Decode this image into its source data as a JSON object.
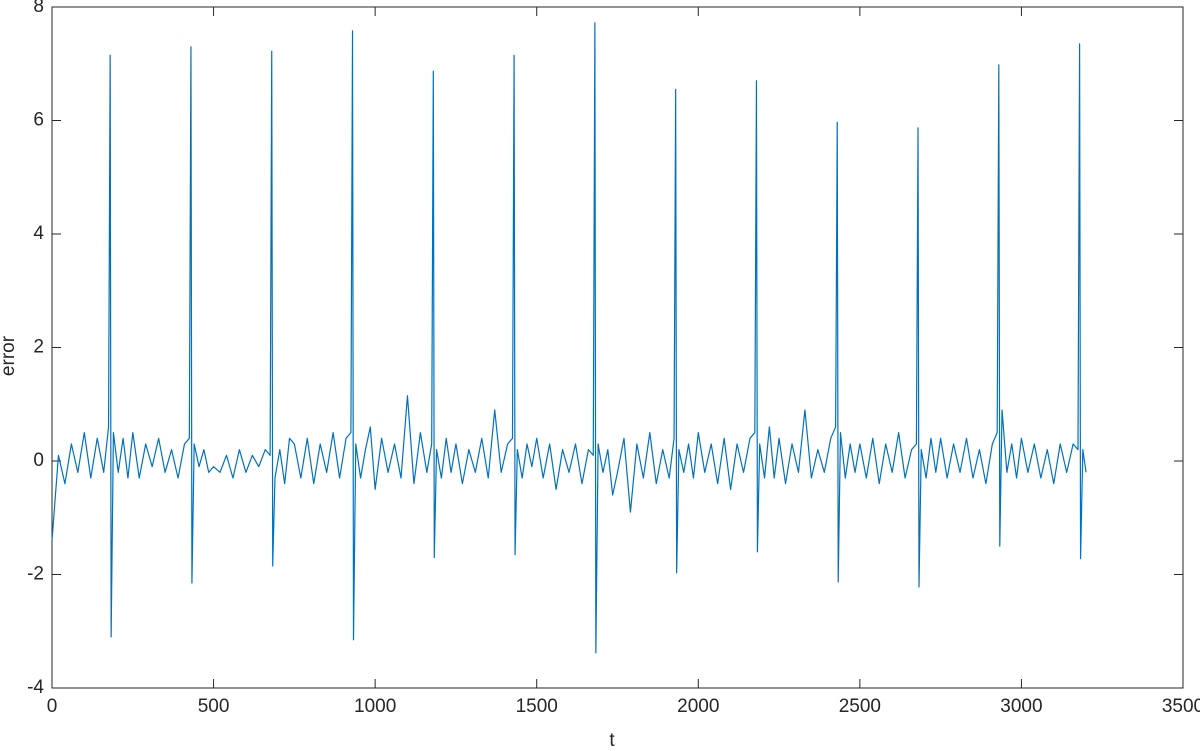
{
  "chart_data": {
    "type": "line",
    "xlabel": "t",
    "ylabel": "error",
    "xlim": [
      0,
      3500
    ],
    "xticks": [
      0,
      500,
      1000,
      1500,
      2000,
      2500,
      3000,
      3500
    ],
    "ylim": [
      -4,
      8
    ],
    "yticks": [
      -4,
      -2,
      0,
      2,
      4,
      6,
      8
    ],
    "series": [
      {
        "color": "#0072bd",
        "x": [
          0,
          20,
          40,
          60,
          80,
          100,
          120,
          140,
          160,
          175,
          180,
          183,
          190,
          205,
          220,
          235,
          250,
          270,
          290,
          310,
          330,
          350,
          370,
          390,
          410,
          425,
          430,
          433,
          440,
          455,
          470,
          485,
          500,
          520,
          540,
          560,
          580,
          600,
          620,
          640,
          660,
          675,
          680,
          683,
          690,
          705,
          720,
          735,
          750,
          770,
          790,
          810,
          830,
          850,
          870,
          890,
          910,
          925,
          930,
          933,
          940,
          955,
          970,
          985,
          1000,
          1020,
          1040,
          1060,
          1080,
          1100,
          1120,
          1140,
          1160,
          1175,
          1180,
          1183,
          1190,
          1205,
          1220,
          1235,
          1250,
          1270,
          1290,
          1310,
          1330,
          1350,
          1370,
          1390,
          1410,
          1425,
          1430,
          1433,
          1440,
          1455,
          1470,
          1485,
          1500,
          1520,
          1540,
          1560,
          1580,
          1600,
          1620,
          1640,
          1660,
          1675,
          1680,
          1683,
          1690,
          1705,
          1720,
          1735,
          1750,
          1770,
          1790,
          1810,
          1830,
          1850,
          1870,
          1890,
          1910,
          1925,
          1930,
          1933,
          1940,
          1955,
          1970,
          1985,
          2000,
          2020,
          2040,
          2060,
          2080,
          2100,
          2120,
          2140,
          2160,
          2175,
          2180,
          2183,
          2190,
          2205,
          2220,
          2235,
          2250,
          2270,
          2290,
          2310,
          2330,
          2350,
          2370,
          2390,
          2410,
          2425,
          2430,
          2433,
          2440,
          2455,
          2470,
          2485,
          2500,
          2520,
          2540,
          2560,
          2580,
          2600,
          2620,
          2640,
          2660,
          2675,
          2680,
          2683,
          2690,
          2705,
          2720,
          2735,
          2750,
          2770,
          2790,
          2810,
          2830,
          2850,
          2870,
          2890,
          2910,
          2925,
          2930,
          2933,
          2940,
          2955,
          2970,
          2985,
          3000,
          3020,
          3040,
          3060,
          3080,
          3100,
          3120,
          3140,
          3160,
          3175,
          3180,
          3183,
          3190,
          3200
        ],
        "values": [
          -1.4,
          0.1,
          -0.4,
          0.3,
          -0.2,
          0.5,
          -0.3,
          0.4,
          -0.2,
          0.6,
          7.15,
          -3.1,
          0.5,
          -0.2,
          0.4,
          -0.3,
          0.5,
          -0.3,
          0.3,
          -0.1,
          0.4,
          -0.2,
          0.2,
          -0.3,
          0.3,
          0.4,
          7.3,
          -2.15,
          0.3,
          -0.1,
          0.2,
          -0.2,
          -0.1,
          -0.2,
          0.1,
          -0.3,
          0.2,
          -0.2,
          0.1,
          -0.1,
          0.2,
          0.1,
          7.22,
          -1.85,
          -0.3,
          0.2,
          -0.4,
          0.4,
          0.3,
          -0.3,
          0.4,
          -0.4,
          0.3,
          -0.2,
          0.5,
          -0.3,
          0.4,
          0.5,
          7.58,
          -3.15,
          0.3,
          -0.3,
          0.2,
          0.6,
          -0.5,
          0.4,
          -0.2,
          0.3,
          -0.3,
          1.15,
          -0.4,
          0.5,
          -0.2,
          0.3,
          6.87,
          -1.7,
          0.2,
          -0.3,
          0.4,
          -0.2,
          0.3,
          -0.4,
          0.2,
          -0.2,
          0.4,
          -0.3,
          0.9,
          -0.2,
          0.3,
          0.4,
          7.15,
          -1.65,
          0.2,
          -0.3,
          0.3,
          -0.1,
          0.4,
          -0.3,
          0.3,
          -0.5,
          0.2,
          -0.2,
          0.3,
          -0.4,
          0.2,
          0.1,
          7.72,
          -3.38,
          0.3,
          -0.2,
          0.2,
          -0.6,
          -0.2,
          0.4,
          -0.9,
          0.3,
          -0.3,
          0.5,
          -0.4,
          0.2,
          -0.3,
          0.4,
          6.55,
          -1.97,
          0.2,
          -0.2,
          0.3,
          -0.3,
          0.5,
          -0.2,
          0.3,
          -0.4,
          0.4,
          -0.5,
          0.3,
          -0.2,
          0.4,
          0.5,
          6.7,
          -1.6,
          0.3,
          -0.3,
          0.6,
          -0.3,
          0.4,
          -0.4,
          0.3,
          -0.2,
          0.9,
          -0.3,
          0.2,
          -0.2,
          0.4,
          0.6,
          5.97,
          -2.13,
          0.5,
          -0.3,
          0.3,
          -0.2,
          0.3,
          -0.3,
          0.4,
          -0.4,
          0.3,
          -0.2,
          0.5,
          -0.3,
          0.2,
          0.3,
          5.87,
          -2.22,
          0.2,
          -0.3,
          0.4,
          -0.2,
          0.4,
          -0.3,
          0.3,
          -0.2,
          0.4,
          -0.3,
          0.2,
          -0.4,
          0.3,
          0.5,
          6.98,
          -1.5,
          0.9,
          -0.2,
          0.3,
          -0.3,
          0.4,
          -0.2,
          0.3,
          -0.3,
          0.2,
          -0.4,
          0.3,
          -0.2,
          0.3,
          0.2,
          7.35,
          -1.72,
          0.2,
          -0.2
        ]
      }
    ]
  }
}
